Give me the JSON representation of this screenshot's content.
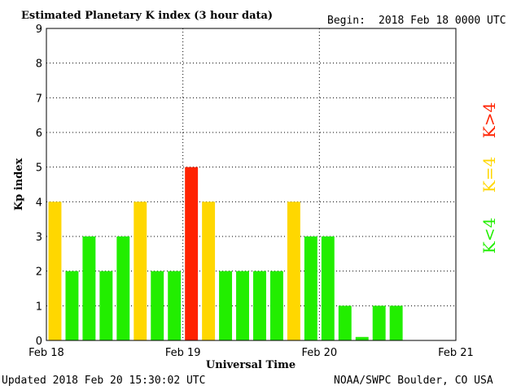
{
  "header": {
    "title": "Estimated Planetary K index (3 hour data)",
    "begin_label": "Begin:",
    "begin_value": "2018 Feb 18 0000 UTC"
  },
  "footer": {
    "updated": "Updated 2018 Feb 20 15:30:02 UTC",
    "source": "NOAA/SWPC Boulder, CO USA"
  },
  "legend": {
    "low": "K<4",
    "mid": "K=4",
    "high": "K>4"
  },
  "colors": {
    "low": "#22ee00",
    "mid": "#ffd700",
    "high": "#ff2200"
  },
  "chart_data": {
    "type": "bar",
    "xlabel": "Universal Time",
    "ylabel": "Kp index",
    "ylim": [
      0,
      9
    ],
    "yticks": [
      0,
      1,
      2,
      3,
      4,
      5,
      6,
      7,
      8,
      9
    ],
    "x_range_days": [
      0,
      3
    ],
    "xticks": [
      {
        "day": 0,
        "label": "Feb 18"
      },
      {
        "day": 1,
        "label": "Feb 19"
      },
      {
        "day": 2,
        "label": "Feb 20"
      },
      {
        "day": 3,
        "label": "Feb 21"
      }
    ],
    "grid": true,
    "interval_hours": 3,
    "values": [
      4,
      2,
      3,
      2,
      3,
      4,
      2,
      2,
      5,
      4,
      2,
      2,
      2,
      2,
      4,
      3,
      3,
      1,
      0.1,
      1,
      1
    ]
  }
}
